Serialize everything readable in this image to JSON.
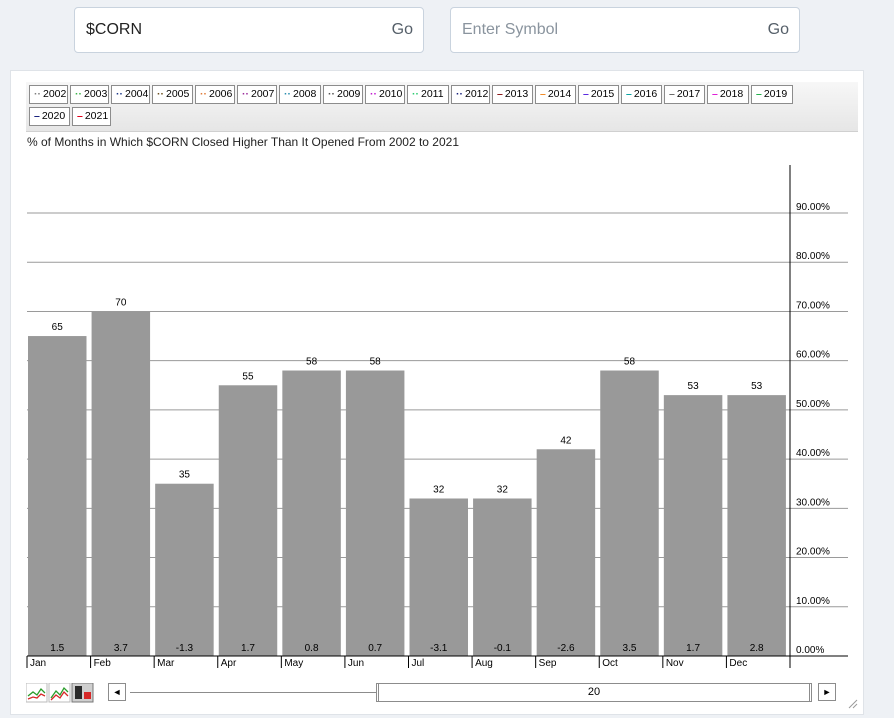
{
  "search": {
    "primary": {
      "value": "$CORN",
      "button": "Go"
    },
    "secondary": {
      "placeholder": "Enter Symbol",
      "button": "Go"
    }
  },
  "legend": [
    {
      "label": "2002",
      "color": "#7f7f7f",
      "style": "dotted"
    },
    {
      "label": "2003",
      "color": "#3cb44b",
      "style": "dotted"
    },
    {
      "label": "2004",
      "color": "#1f3a8a",
      "style": "dotted"
    },
    {
      "label": "2005",
      "color": "#6b4f1d",
      "style": "dotted"
    },
    {
      "label": "2006",
      "color": "#e07b39",
      "style": "dotted"
    },
    {
      "label": "2007",
      "color": "#9b2d9b",
      "style": "dotted"
    },
    {
      "label": "2008",
      "color": "#2c8fb0",
      "style": "dotted"
    },
    {
      "label": "2009",
      "color": "#555555",
      "style": "dotted"
    },
    {
      "label": "2010",
      "color": "#c21bd1",
      "style": "dotted"
    },
    {
      "label": "2011",
      "color": "#2ecc71",
      "style": "dotted"
    },
    {
      "label": "2012",
      "color": "#1a237e",
      "style": "dotted"
    },
    {
      "label": "2013",
      "color": "#8b1a1a",
      "style": "solid"
    },
    {
      "label": "2014",
      "color": "#f28c28",
      "style": "solid"
    },
    {
      "label": "2015",
      "color": "#5b2ae0",
      "style": "solid"
    },
    {
      "label": "2016",
      "color": "#0aa3a3",
      "style": "solid"
    },
    {
      "label": "2017",
      "color": "#6b6b6b",
      "style": "solid"
    },
    {
      "label": "2018",
      "color": "#e020d8",
      "style": "solid"
    },
    {
      "label": "2019",
      "color": "#22b14c",
      "style": "solid"
    },
    {
      "label": "2020",
      "color": "#1a237e",
      "style": "solid"
    },
    {
      "label": "2021",
      "color": "#e3001b",
      "style": "solid"
    }
  ],
  "chart_title": "% of Months in Which $CORN Closed Higher Than It Opened From 2002 to 2021",
  "chart_data": {
    "type": "bar",
    "title": "% of Months in Which $CORN Closed Higher Than It Opened From 2002 to 2021",
    "categories": [
      "Jan",
      "Feb",
      "Mar",
      "Apr",
      "May",
      "Jun",
      "Jul",
      "Aug",
      "Sep",
      "Oct",
      "Nov",
      "Dec"
    ],
    "series": [
      {
        "values": [
          65,
          70,
          35,
          55,
          58,
          58,
          32,
          32,
          42,
          58,
          53,
          53
        ]
      }
    ],
    "avg_change": [
      "1.5",
      "3.7",
      "-1.3",
      "1.7",
      "0.8",
      "0.7",
      "-3.1",
      "-0.1",
      "-2.6",
      "3.5",
      "1.7",
      "2.8"
    ],
    "yaxis_ticks": [
      "0.00%",
      "10.00%",
      "20.00%",
      "30.00%",
      "40.00%",
      "50.00%",
      "60.00%",
      "70.00%",
      "80.00%",
      "90.00%"
    ],
    "ylim": [
      0,
      100
    ],
    "bar_color": "#999999",
    "grid": true,
    "yaxis_side": "right"
  },
  "footer": {
    "scroll_left": "◄",
    "scroll_right": "►",
    "scroll_value": "20"
  }
}
